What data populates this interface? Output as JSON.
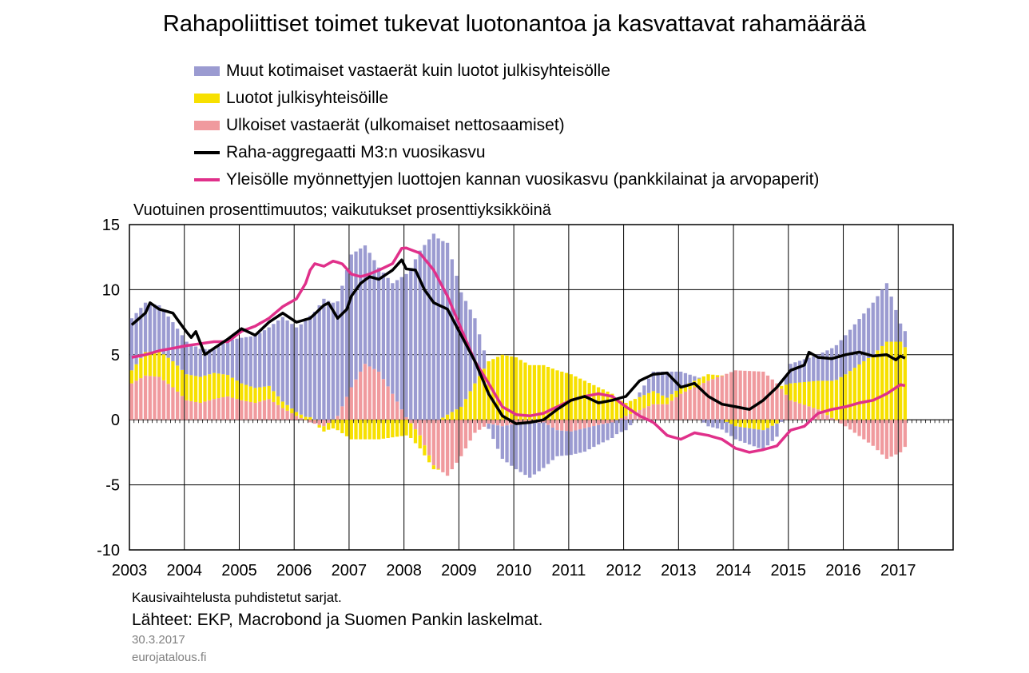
{
  "title": "Rahapoliittiset toimet tukevat luotonantoa ja kasvattavat rahamäärää",
  "subtitle": "Vuotuinen prosenttimuutos; vaikutukset prosenttiyksikköinä",
  "footnote": "Kausivaihtelusta puhdistetut sarjat.",
  "sources": "Lähteet: EKP, Macrobond ja Suomen Pankin laskelmat.",
  "date": "30.3.2017",
  "site": "eurojatalous.fi",
  "colors": {
    "other_domestic": "#9b9bd1",
    "loans_public": "#f7e000",
    "external": "#f09a9e",
    "m3": "#000000",
    "credit": "#e0308a",
    "grid": "#000000"
  },
  "legend": [
    {
      "key": "other_domestic",
      "label": "Muut kotimaiset vastaerät kuin luotot julkisyhteisölle",
      "kind": "bar"
    },
    {
      "key": "loans_public",
      "label": "Luotot julkisyhteisöille",
      "kind": "bar"
    },
    {
      "key": "external",
      "label": "Ulkoiset vastaerät (ulkomaiset nettosaamiset)",
      "kind": "bar"
    },
    {
      "key": "m3",
      "label": "Raha-aggregaatti M3:n vuosikasvu",
      "kind": "line"
    },
    {
      "key": "credit",
      "label": "Yleisölle myönnettyjen luottojen kannan vuosikasvu (pankkilainat ja arvopaperit)",
      "kind": "line"
    }
  ],
  "chart_data": {
    "type": "bar",
    "stacked": true,
    "ylim": [
      -10,
      15
    ],
    "yticks": [
      15,
      10,
      5,
      0,
      -5,
      -10
    ],
    "xlim": [
      2003,
      2018
    ],
    "xticks": [
      2003,
      2004,
      2005,
      2006,
      2007,
      2008,
      2009,
      2010,
      2011,
      2012,
      2013,
      2014,
      2015,
      2016,
      2017
    ],
    "grid": true,
    "frequency": "monthly",
    "start": "2003-01",
    "end": "2017-02",
    "bar_anchors": {
      "external": [
        [
          2003.0,
          2.8
        ],
        [
          2003.25,
          3.4
        ],
        [
          2003.5,
          3.3
        ],
        [
          2003.75,
          2.5
        ],
        [
          2004.0,
          1.5
        ],
        [
          2004.25,
          1.3
        ],
        [
          2004.5,
          1.6
        ],
        [
          2004.75,
          1.8
        ],
        [
          2005.0,
          1.5
        ],
        [
          2005.25,
          1.3
        ],
        [
          2005.5,
          1.6
        ],
        [
          2005.75,
          0.9
        ],
        [
          2006.0,
          0.3
        ],
        [
          2006.25,
          -0.2
        ],
        [
          2006.5,
          -0.5
        ],
        [
          2006.75,
          0.3
        ],
        [
          2007.0,
          2.5
        ],
        [
          2007.25,
          4.3
        ],
        [
          2007.5,
          3.7
        ],
        [
          2007.75,
          2.0
        ],
        [
          2008.0,
          0.2
        ],
        [
          2008.25,
          -1.2
        ],
        [
          2008.5,
          -3.5
        ],
        [
          2008.75,
          -4.3
        ],
        [
          2009.0,
          -2.8
        ],
        [
          2009.25,
          -1.0
        ],
        [
          2009.5,
          -0.3
        ],
        [
          2009.75,
          -0.5
        ],
        [
          2010.0,
          -0.3
        ],
        [
          2010.5,
          -0.2
        ],
        [
          2010.75,
          -0.8
        ],
        [
          2011.0,
          -0.9
        ],
        [
          2011.5,
          -0.4
        ],
        [
          2011.75,
          -0.2
        ],
        [
          2012.0,
          0.3
        ],
        [
          2012.5,
          1.2
        ],
        [
          2012.75,
          1.2
        ],
        [
          2013.0,
          2.0
        ],
        [
          2013.5,
          3.0
        ],
        [
          2014.0,
          3.8
        ],
        [
          2014.5,
          3.7
        ],
        [
          2014.75,
          2.8
        ],
        [
          2015.0,
          1.5
        ],
        [
          2015.5,
          0.8
        ],
        [
          2016.0,
          -0.5
        ],
        [
          2016.5,
          -2.0
        ],
        [
          2016.75,
          -3.0
        ],
        [
          2017.0,
          -2.5
        ],
        [
          2017.1,
          -2.0
        ]
      ],
      "loans_public": [
        [
          2003.0,
          1.0
        ],
        [
          2003.25,
          1.8
        ],
        [
          2003.5,
          2.0
        ],
        [
          2003.75,
          2.0
        ],
        [
          2004.0,
          2.0
        ],
        [
          2004.5,
          2.0
        ],
        [
          2005.0,
          1.3
        ],
        [
          2005.5,
          1.0
        ],
        [
          2005.75,
          0.5
        ],
        [
          2006.0,
          0.3
        ],
        [
          2006.25,
          0.2
        ],
        [
          2006.5,
          -0.4
        ],
        [
          2006.75,
          -0.8
        ],
        [
          2007.0,
          -1.5
        ],
        [
          2007.5,
          -1.5
        ],
        [
          2008.0,
          -1.2
        ],
        [
          2008.25,
          -1.0
        ],
        [
          2008.5,
          -0.3
        ],
        [
          2008.75,
          0.4
        ],
        [
          2009.0,
          1.0
        ],
        [
          2009.25,
          2.8
        ],
        [
          2009.5,
          4.5
        ],
        [
          2009.75,
          5.0
        ],
        [
          2010.0,
          4.8
        ],
        [
          2010.25,
          4.2
        ],
        [
          2010.5,
          4.2
        ],
        [
          2010.75,
          3.8
        ],
        [
          2011.0,
          3.5
        ],
        [
          2011.5,
          2.5
        ],
        [
          2011.75,
          2.0
        ],
        [
          2012.0,
          1.0
        ],
        [
          2012.5,
          1.0
        ],
        [
          2012.75,
          0.5
        ],
        [
          2013.0,
          0.5
        ],
        [
          2013.5,
          0.5
        ],
        [
          2014.0,
          -0.5
        ],
        [
          2014.5,
          -0.8
        ],
        [
          2014.75,
          -0.3
        ],
        [
          2015.0,
          1.3
        ],
        [
          2015.5,
          2.2
        ],
        [
          2016.0,
          3.5
        ],
        [
          2016.5,
          5.0
        ],
        [
          2016.75,
          6.0
        ],
        [
          2017.0,
          6.0
        ],
        [
          2017.1,
          5.5
        ]
      ],
      "other_domestic": [
        [
          2003.0,
          4.0
        ],
        [
          2003.25,
          3.8
        ],
        [
          2003.5,
          3.5
        ],
        [
          2003.75,
          3.0
        ],
        [
          2004.0,
          2.5
        ],
        [
          2004.5,
          1.8
        ],
        [
          2005.0,
          3.5
        ],
        [
          2005.5,
          4.5
        ],
        [
          2005.75,
          6.5
        ],
        [
          2006.0,
          6.5
        ],
        [
          2006.25,
          7.8
        ],
        [
          2006.5,
          9.3
        ],
        [
          2006.75,
          8.8
        ],
        [
          2007.0,
          10.2
        ],
        [
          2007.5,
          8.0
        ],
        [
          2007.75,
          8.5
        ],
        [
          2008.0,
          11.0
        ],
        [
          2008.25,
          13.0
        ],
        [
          2008.5,
          14.3
        ],
        [
          2008.75,
          13.2
        ],
        [
          2009.0,
          8.8
        ],
        [
          2009.25,
          5.0
        ],
        [
          2009.5,
          -0.4
        ],
        [
          2009.75,
          -2.5
        ],
        [
          2010.0,
          -3.5
        ],
        [
          2010.25,
          -4.2
        ],
        [
          2010.5,
          -3.5
        ],
        [
          2010.75,
          -2.0
        ],
        [
          2011.0,
          -1.8
        ],
        [
          2011.25,
          -1.8
        ],
        [
          2011.5,
          -1.5
        ],
        [
          2011.75,
          -1.2
        ],
        [
          2012.0,
          -0.8
        ],
        [
          2012.5,
          1.5
        ],
        [
          2012.75,
          2.0
        ],
        [
          2013.0,
          1.2
        ],
        [
          2013.5,
          -0.5
        ],
        [
          2014.0,
          -1.0
        ],
        [
          2014.5,
          -1.5
        ],
        [
          2014.75,
          -1.0
        ],
        [
          2015.0,
          1.5
        ],
        [
          2015.5,
          2.0
        ],
        [
          2016.0,
          3.0
        ],
        [
          2016.5,
          4.0
        ],
        [
          2016.75,
          4.5
        ],
        [
          2017.0,
          1.4
        ],
        [
          2017.1,
          1.2
        ]
      ],
      "m3": [
        [
          2003.0,
          7.3
        ],
        [
          2003.25,
          8.2
        ],
        [
          2003.33,
          9.0
        ],
        [
          2003.5,
          8.5
        ],
        [
          2003.75,
          8.2
        ],
        [
          2003.92,
          7.2
        ],
        [
          2004.08,
          6.3
        ],
        [
          2004.17,
          6.8
        ],
        [
          2004.33,
          5.0
        ],
        [
          2004.5,
          5.5
        ],
        [
          2004.75,
          6.2
        ],
        [
          2005.0,
          7.0
        ],
        [
          2005.25,
          6.5
        ],
        [
          2005.5,
          7.5
        ],
        [
          2005.75,
          8.2
        ],
        [
          2006.0,
          7.5
        ],
        [
          2006.25,
          7.8
        ],
        [
          2006.5,
          8.8
        ],
        [
          2006.58,
          9.0
        ],
        [
          2006.75,
          7.8
        ],
        [
          2006.92,
          8.5
        ],
        [
          2007.0,
          9.5
        ],
        [
          2007.17,
          10.5
        ],
        [
          2007.33,
          11.0
        ],
        [
          2007.5,
          10.8
        ],
        [
          2007.75,
          11.5
        ],
        [
          2007.92,
          12.3
        ],
        [
          2008.0,
          11.6
        ],
        [
          2008.17,
          11.5
        ],
        [
          2008.33,
          10.0
        ],
        [
          2008.5,
          9.0
        ],
        [
          2008.75,
          8.5
        ],
        [
          2009.0,
          6.5
        ],
        [
          2009.25,
          4.5
        ],
        [
          2009.5,
          2.0
        ],
        [
          2009.75,
          0.3
        ],
        [
          2010.0,
          -0.3
        ],
        [
          2010.25,
          -0.2
        ],
        [
          2010.5,
          0.0
        ],
        [
          2010.75,
          0.8
        ],
        [
          2011.0,
          1.5
        ],
        [
          2011.25,
          1.8
        ],
        [
          2011.5,
          1.3
        ],
        [
          2011.75,
          1.5
        ],
        [
          2012.0,
          1.8
        ],
        [
          2012.25,
          3.0
        ],
        [
          2012.5,
          3.5
        ],
        [
          2012.75,
          3.6
        ],
        [
          2013.0,
          2.5
        ],
        [
          2013.25,
          2.8
        ],
        [
          2013.5,
          1.8
        ],
        [
          2013.75,
          1.2
        ],
        [
          2014.0,
          1.0
        ],
        [
          2014.25,
          0.8
        ],
        [
          2014.5,
          1.5
        ],
        [
          2014.75,
          2.5
        ],
        [
          2015.0,
          3.8
        ],
        [
          2015.25,
          4.2
        ],
        [
          2015.33,
          5.2
        ],
        [
          2015.5,
          4.8
        ],
        [
          2015.75,
          4.7
        ],
        [
          2016.0,
          5.0
        ],
        [
          2016.25,
          5.2
        ],
        [
          2016.5,
          4.9
        ],
        [
          2016.75,
          5.0
        ],
        [
          2016.92,
          4.6
        ],
        [
          2017.0,
          4.9
        ],
        [
          2017.1,
          4.7
        ]
      ],
      "credit": [
        [
          2003.0,
          4.8
        ],
        [
          2003.25,
          5.0
        ],
        [
          2003.5,
          5.3
        ],
        [
          2003.75,
          5.5
        ],
        [
          2004.0,
          5.7
        ],
        [
          2004.5,
          6.0
        ],
        [
          2004.75,
          6.0
        ],
        [
          2005.0,
          6.8
        ],
        [
          2005.25,
          7.2
        ],
        [
          2005.5,
          7.8
        ],
        [
          2005.75,
          8.7
        ],
        [
          2006.0,
          9.3
        ],
        [
          2006.17,
          10.5
        ],
        [
          2006.25,
          11.5
        ],
        [
          2006.33,
          12.0
        ],
        [
          2006.5,
          11.8
        ],
        [
          2006.67,
          12.2
        ],
        [
          2006.83,
          12.0
        ],
        [
          2007.0,
          11.2
        ],
        [
          2007.17,
          11.0
        ],
        [
          2007.33,
          11.2
        ],
        [
          2007.5,
          11.5
        ],
        [
          2007.75,
          12.0
        ],
        [
          2007.92,
          13.2
        ],
        [
          2008.0,
          13.2
        ],
        [
          2008.25,
          12.8
        ],
        [
          2008.5,
          11.5
        ],
        [
          2008.75,
          9.5
        ],
        [
          2009.0,
          7.0
        ],
        [
          2009.25,
          4.5
        ],
        [
          2009.5,
          2.8
        ],
        [
          2009.75,
          1.0
        ],
        [
          2010.0,
          0.4
        ],
        [
          2010.25,
          0.3
        ],
        [
          2010.5,
          0.5
        ],
        [
          2010.75,
          1.0
        ],
        [
          2011.0,
          1.5
        ],
        [
          2011.25,
          1.8
        ],
        [
          2011.5,
          2.0
        ],
        [
          2011.75,
          1.8
        ],
        [
          2012.0,
          1.0
        ],
        [
          2012.25,
          0.3
        ],
        [
          2012.5,
          -0.2
        ],
        [
          2012.75,
          -1.2
        ],
        [
          2013.0,
          -1.5
        ],
        [
          2013.25,
          -1.0
        ],
        [
          2013.5,
          -1.2
        ],
        [
          2013.75,
          -1.5
        ],
        [
          2014.0,
          -2.2
        ],
        [
          2014.25,
          -2.5
        ],
        [
          2014.5,
          -2.3
        ],
        [
          2014.75,
          -2.0
        ],
        [
          2015.0,
          -0.8
        ],
        [
          2015.25,
          -0.5
        ],
        [
          2015.5,
          0.5
        ],
        [
          2015.75,
          0.8
        ],
        [
          2016.0,
          1.0
        ],
        [
          2016.25,
          1.3
        ],
        [
          2016.5,
          1.5
        ],
        [
          2016.75,
          2.0
        ],
        [
          2017.0,
          2.7
        ],
        [
          2017.1,
          2.6
        ]
      ]
    }
  }
}
